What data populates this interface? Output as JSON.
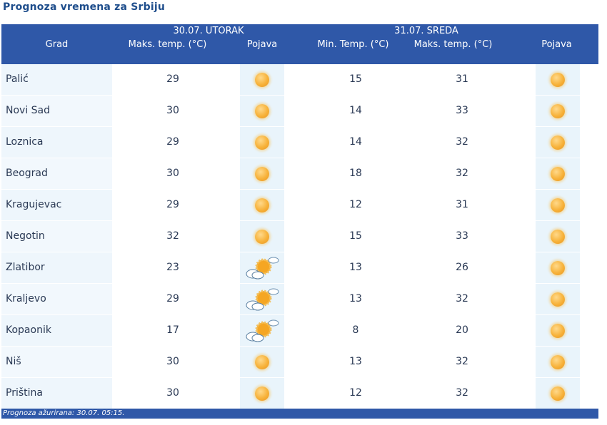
{
  "page": {
    "title": "Prognoza vremena za Srbiju"
  },
  "header": {
    "grad": "Grad",
    "day1": "30.07. UTORAK",
    "day2": "31.07. SREDA",
    "max_temp_1": "Maks. temp. (°C)",
    "pojava_1": "Pojava",
    "min_temp_2": "Min. Temp. (°C)",
    "max_temp_2": "Maks. temp. (°C)",
    "pojava_2": "Pojava"
  },
  "rows": [
    {
      "city": "Palić",
      "max1": "29",
      "icon1": "sun-icon",
      "min2": "15",
      "max2": "31",
      "icon2": "sun-icon"
    },
    {
      "city": "Novi Sad",
      "max1": "30",
      "icon1": "sun-icon",
      "min2": "14",
      "max2": "33",
      "icon2": "sun-icon"
    },
    {
      "city": "Loznica",
      "max1": "29",
      "icon1": "sun-icon",
      "min2": "14",
      "max2": "32",
      "icon2": "sun-icon"
    },
    {
      "city": "Beograd",
      "max1": "30",
      "icon1": "sun-icon",
      "min2": "18",
      "max2": "32",
      "icon2": "sun-icon"
    },
    {
      "city": "Kragujevac",
      "max1": "29",
      "icon1": "sun-icon",
      "min2": "12",
      "max2": "31",
      "icon2": "sun-icon"
    },
    {
      "city": "Negotin",
      "max1": "32",
      "icon1": "sun-icon",
      "min2": "15",
      "max2": "33",
      "icon2": "sun-icon"
    },
    {
      "city": "Zlatibor",
      "max1": "23",
      "icon1": "partly-cloudy-icon",
      "min2": "13",
      "max2": "26",
      "icon2": "sun-icon"
    },
    {
      "city": "Kraljevo",
      "max1": "29",
      "icon1": "partly-cloudy-icon",
      "min2": "13",
      "max2": "32",
      "icon2": "sun-icon"
    },
    {
      "city": "Kopaonik",
      "max1": "17",
      "icon1": "partly-cloudy-icon",
      "min2": "8",
      "max2": "20",
      "icon2": "sun-icon"
    },
    {
      "city": "Niš",
      "max1": "30",
      "icon1": "sun-icon",
      "min2": "13",
      "max2": "32",
      "icon2": "sun-icon"
    },
    {
      "city": "Priština",
      "max1": "30",
      "icon1": "sun-icon",
      "min2": "12",
      "max2": "32",
      "icon2": "sun-icon"
    }
  ],
  "footer": {
    "text": "Prognoza ažurirana:  30.07. 05:15."
  },
  "colors": {
    "header_bg": "#2f58a8",
    "title": "#1f4e8c",
    "row_tint": "#e9f4fb",
    "sun": "#f7b23a"
  }
}
